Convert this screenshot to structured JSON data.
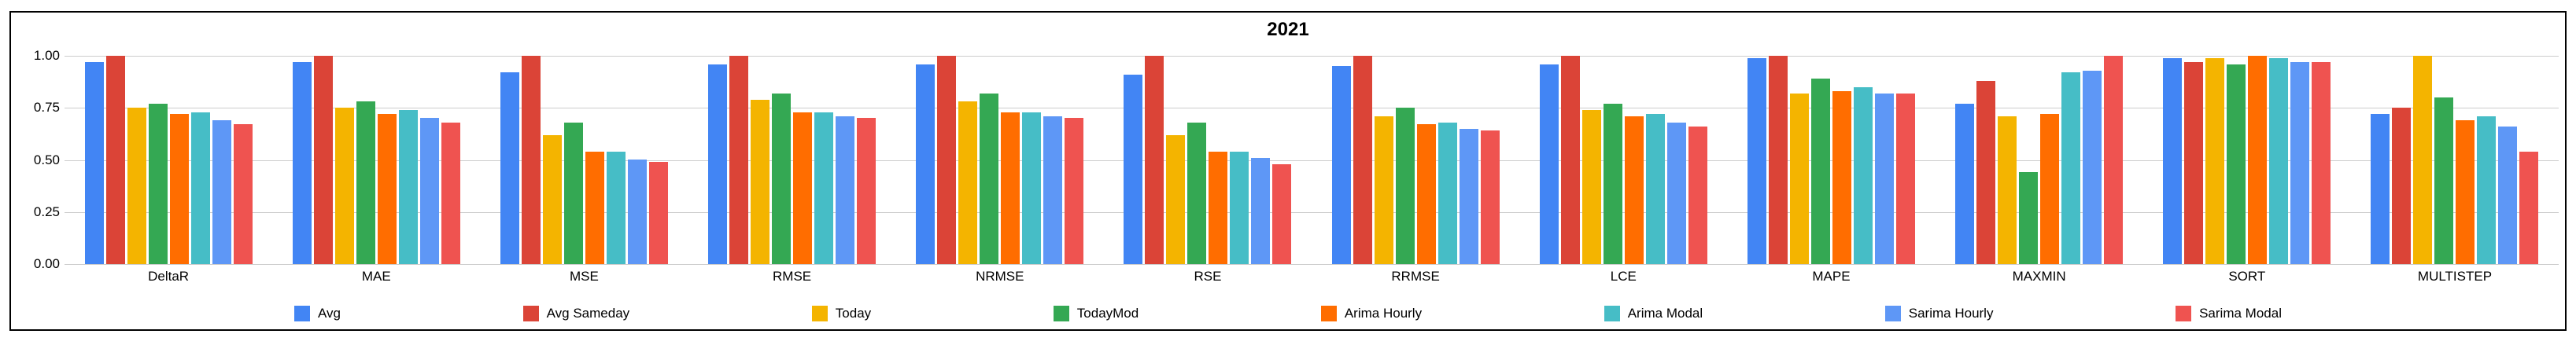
{
  "chart_data": {
    "type": "bar",
    "title": "2021",
    "xlabel": "",
    "ylabel": "",
    "ylim": [
      0,
      1.0
    ],
    "yticks": [
      {
        "value": 0.0,
        "label": "0.00"
      },
      {
        "value": 0.25,
        "label": "0.25"
      },
      {
        "value": 0.5,
        "label": "0.50"
      },
      {
        "value": 0.75,
        "label": "0.75"
      },
      {
        "value": 1.0,
        "label": "1.00"
      }
    ],
    "grid": true,
    "legend_position": "bottom",
    "categories": [
      "DeltaR",
      "MAE",
      "MSE",
      "RMSE",
      "NRMSE",
      "RSE",
      "RRMSE",
      "LCE",
      "MAPE",
      "MAXMIN",
      "SORT",
      "MULTISTEP"
    ],
    "series": [
      {
        "name": "Avg",
        "color": "#4285F4",
        "values": [
          0.97,
          0.97,
          0.92,
          0.96,
          0.96,
          0.91,
          0.95,
          0.96,
          0.99,
          0.77,
          0.99,
          0.72
        ]
      },
      {
        "name": "Avg Sameday",
        "color": "#DB4437",
        "values": [
          1.0,
          1.0,
          1.0,
          1.0,
          1.0,
          1.0,
          1.0,
          1.0,
          1.0,
          0.88,
          0.97,
          0.75
        ]
      },
      {
        "name": "Today",
        "color": "#F4B400",
        "values": [
          0.75,
          0.75,
          0.62,
          0.79,
          0.78,
          0.62,
          0.71,
          0.74,
          0.82,
          0.71,
          0.99,
          1.0
        ]
      },
      {
        "name": "TodayMod",
        "color": "#34A853",
        "values": [
          0.77,
          0.78,
          0.68,
          0.82,
          0.82,
          0.68,
          0.75,
          0.77,
          0.89,
          0.44,
          0.96,
          0.8
        ]
      },
      {
        "name": "Arima Hourly",
        "color": "#FF6D00",
        "values": [
          0.72,
          0.72,
          0.54,
          0.73,
          0.73,
          0.54,
          0.67,
          0.71,
          0.83,
          0.72,
          1.0,
          0.69
        ]
      },
      {
        "name": "Arima Modal",
        "color": "#46BDC6",
        "values": [
          0.73,
          0.74,
          0.54,
          0.73,
          0.73,
          0.54,
          0.68,
          0.72,
          0.85,
          0.92,
          0.99,
          0.71
        ]
      },
      {
        "name": "Sarima Hourly",
        "color": "#5E97F6",
        "values": [
          0.69,
          0.7,
          0.5,
          0.71,
          0.71,
          0.51,
          0.65,
          0.68,
          0.82,
          0.93,
          0.97,
          0.66
        ]
      },
      {
        "name": "Sarima Modal",
        "color": "#EF5350",
        "values": [
          0.67,
          0.68,
          0.49,
          0.7,
          0.7,
          0.48,
          0.64,
          0.66,
          0.82,
          1.0,
          0.97,
          0.54
        ]
      }
    ],
    "plot_colors": {
      "gridline": "#cccccc",
      "frame_border": "#000000",
      "background": "#ffffff"
    }
  }
}
